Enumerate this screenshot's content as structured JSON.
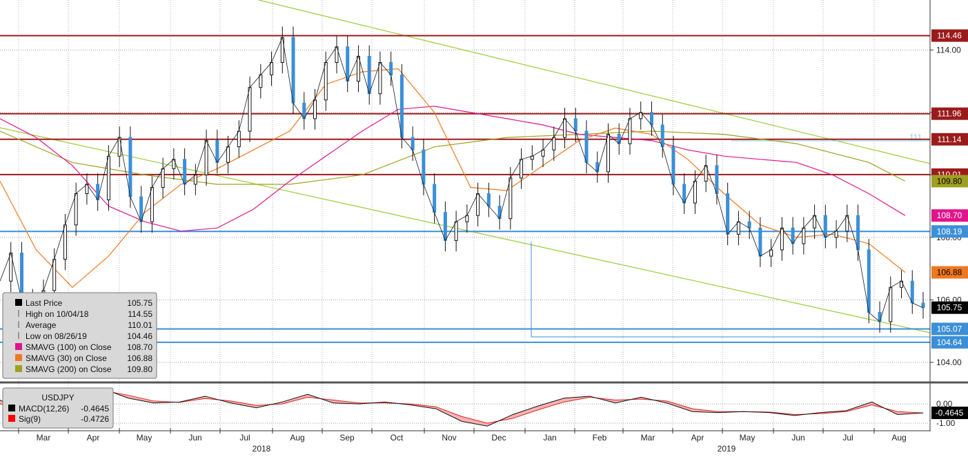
{
  "chart_data": {
    "type": "line",
    "instrument": "USDJPY",
    "x_months": [
      "Mar",
      "Apr",
      "May",
      "Jun",
      "Jul",
      "Aug",
      "Sep",
      "Oct",
      "Nov",
      "Dec",
      "Jan",
      "Feb",
      "Mar",
      "Apr",
      "May",
      "Jun",
      "Jul",
      "Aug"
    ],
    "x_years": [
      "2018",
      "2019"
    ],
    "price_axis": {
      "ticks": [
        "114.00",
        "112.00",
        "110.00",
        "108.00",
        "106.00",
        "104.00"
      ],
      "ylim": [
        103.4,
        115.6
      ],
      "grid": true
    },
    "horizontal_levels": [
      {
        "label": "114.46",
        "value": 114.46,
        "color": "#9b1b1b"
      },
      {
        "label": "111.96",
        "value": 111.96,
        "color": "#9b1b1b"
      },
      {
        "label": "111.14",
        "value": 111.14,
        "color": "#9b1b1b"
      },
      {
        "label": "110.01",
        "value": 110.01,
        "color": "#9b1b1b"
      },
      {
        "label": "108.19",
        "value": 108.19,
        "color": "#3b8fd8"
      },
      {
        "label": "105.07",
        "value": 105.07,
        "color": "#3b8fd8"
      },
      {
        "label": "104.64",
        "value": 104.64,
        "color": "#3b8fd8"
      }
    ],
    "value_tags": [
      {
        "label": "109.80",
        "value": 109.8,
        "bg": "#a0a020",
        "fg": "#000000"
      },
      {
        "label": "108.70",
        "value": 108.7,
        "bg": "#e0148c",
        "fg": "#ffffff"
      },
      {
        "label": "106.88",
        "value": 106.88,
        "bg": "#f07820",
        "fg": "#000000"
      },
      {
        "label": "105.75",
        "value": 105.75,
        "bg": "#000000",
        "fg": "#ffffff"
      }
    ],
    "trend_line_label": "111",
    "price_series": [
      {
        "x": 0,
        "y": 106.6
      },
      {
        "x": 0.3,
        "y": 107.5
      },
      {
        "x": 0.6,
        "y": 106.0
      },
      {
        "x": 0.9,
        "y": 105.0
      },
      {
        "x": 1.2,
        "y": 106.3
      },
      {
        "x": 1.5,
        "y": 107.3
      },
      {
        "x": 1.8,
        "y": 108.4
      },
      {
        "x": 2.1,
        "y": 109.4
      },
      {
        "x": 2.4,
        "y": 109.7
      },
      {
        "x": 2.7,
        "y": 109.2
      },
      {
        "x": 3.0,
        "y": 110.6
      },
      {
        "x": 3.3,
        "y": 111.2
      },
      {
        "x": 3.6,
        "y": 109.3
      },
      {
        "x": 3.9,
        "y": 108.5
      },
      {
        "x": 4.2,
        "y": 109.6
      },
      {
        "x": 4.5,
        "y": 110.2
      },
      {
        "x": 4.8,
        "y": 110.5
      },
      {
        "x": 5.1,
        "y": 109.7
      },
      {
        "x": 5.4,
        "y": 110.0
      },
      {
        "x": 5.7,
        "y": 111.1
      },
      {
        "x": 6.0,
        "y": 110.4
      },
      {
        "x": 6.3,
        "y": 110.9
      },
      {
        "x": 6.6,
        "y": 111.4
      },
      {
        "x": 6.9,
        "y": 112.8
      },
      {
        "x": 7.2,
        "y": 113.2
      },
      {
        "x": 7.5,
        "y": 113.6
      },
      {
        "x": 7.8,
        "y": 114.4
      },
      {
        "x": 8.1,
        "y": 112.3
      },
      {
        "x": 8.4,
        "y": 111.8
      },
      {
        "x": 8.7,
        "y": 112.4
      },
      {
        "x": 9.0,
        "y": 113.6
      },
      {
        "x": 9.3,
        "y": 114.1
      },
      {
        "x": 9.6,
        "y": 113.0
      },
      {
        "x": 9.9,
        "y": 113.8
      },
      {
        "x": 10.2,
        "y": 112.6
      },
      {
        "x": 10.5,
        "y": 113.6
      },
      {
        "x": 10.8,
        "y": 113.2
      },
      {
        "x": 11.1,
        "y": 111.2
      },
      {
        "x": 11.4,
        "y": 110.8
      },
      {
        "x": 11.7,
        "y": 109.7
      },
      {
        "x": 12.0,
        "y": 108.8
      },
      {
        "x": 12.3,
        "y": 107.9
      },
      {
        "x": 12.6,
        "y": 108.5
      },
      {
        "x": 12.9,
        "y": 108.7
      },
      {
        "x": 13.2,
        "y": 109.4
      },
      {
        "x": 13.5,
        "y": 109.0
      },
      {
        "x": 13.8,
        "y": 108.6
      },
      {
        "x": 14.1,
        "y": 109.9
      },
      {
        "x": 14.4,
        "y": 110.5
      },
      {
        "x": 14.7,
        "y": 110.6
      },
      {
        "x": 15.0,
        "y": 110.8
      },
      {
        "x": 15.3,
        "y": 111.2
      },
      {
        "x": 15.6,
        "y": 111.8
      },
      {
        "x": 15.9,
        "y": 111.4
      },
      {
        "x": 16.2,
        "y": 110.4
      },
      {
        "x": 16.5,
        "y": 110.1
      },
      {
        "x": 16.8,
        "y": 111.3
      },
      {
        "x": 17.1,
        "y": 111.0
      },
      {
        "x": 17.4,
        "y": 111.8
      },
      {
        "x": 17.7,
        "y": 112.0
      },
      {
        "x": 18.0,
        "y": 111.6
      },
      {
        "x": 18.3,
        "y": 110.9
      },
      {
        "x": 18.6,
        "y": 109.7
      },
      {
        "x": 18.9,
        "y": 109.1
      },
      {
        "x": 19.2,
        "y": 109.8
      },
      {
        "x": 19.5,
        "y": 110.3
      },
      {
        "x": 19.8,
        "y": 109.4
      },
      {
        "x": 20.1,
        "y": 108.1
      },
      {
        "x": 20.4,
        "y": 108.5
      },
      {
        "x": 20.7,
        "y": 108.3
      },
      {
        "x": 21.0,
        "y": 107.4
      },
      {
        "x": 21.3,
        "y": 107.6
      },
      {
        "x": 21.6,
        "y": 108.3
      },
      {
        "x": 21.9,
        "y": 107.8
      },
      {
        "x": 22.2,
        "y": 108.3
      },
      {
        "x": 22.5,
        "y": 108.7
      },
      {
        "x": 22.8,
        "y": 108.0
      },
      {
        "x": 23.1,
        "y": 108.2
      },
      {
        "x": 23.4,
        "y": 108.7
      },
      {
        "x": 23.7,
        "y": 107.6
      },
      {
        "x": 24.0,
        "y": 105.6
      },
      {
        "x": 24.3,
        "y": 105.3
      },
      {
        "x": 24.6,
        "y": 106.4
      },
      {
        "x": 24.9,
        "y": 106.6
      },
      {
        "x": 25.2,
        "y": 105.9
      },
      {
        "x": 25.5,
        "y": 105.75
      }
    ],
    "sma_100": [
      {
        "x": 0,
        "y": 111.8
      },
      {
        "x": 1,
        "y": 111.2
      },
      {
        "x": 2,
        "y": 110.3
      },
      {
        "x": 3,
        "y": 109.0
      },
      {
        "x": 4,
        "y": 108.5
      },
      {
        "x": 5,
        "y": 108.2
      },
      {
        "x": 6,
        "y": 108.3
      },
      {
        "x": 7,
        "y": 108.9
      },
      {
        "x": 8,
        "y": 109.8
      },
      {
        "x": 9,
        "y": 110.6
      },
      {
        "x": 10,
        "y": 111.4
      },
      {
        "x": 11,
        "y": 112.1
      },
      {
        "x": 12,
        "y": 112.2
      },
      {
        "x": 13,
        "y": 112.0
      },
      {
        "x": 14,
        "y": 111.8
      },
      {
        "x": 15,
        "y": 111.6
      },
      {
        "x": 16,
        "y": 111.3
      },
      {
        "x": 17,
        "y": 111.2
      },
      {
        "x": 18,
        "y": 111.1
      },
      {
        "x": 19,
        "y": 110.8
      },
      {
        "x": 20,
        "y": 110.6
      },
      {
        "x": 21,
        "y": 110.5
      },
      {
        "x": 22,
        "y": 110.4
      },
      {
        "x": 23,
        "y": 110.0
      },
      {
        "x": 24,
        "y": 109.4
      },
      {
        "x": 25,
        "y": 108.7
      }
    ],
    "sma_30": [
      {
        "x": 0,
        "y": 109.8
      },
      {
        "x": 1,
        "y": 107.6
      },
      {
        "x": 2,
        "y": 106.4
      },
      {
        "x": 3,
        "y": 107.4
      },
      {
        "x": 4,
        "y": 108.8
      },
      {
        "x": 5,
        "y": 109.7
      },
      {
        "x": 6,
        "y": 110.2
      },
      {
        "x": 7,
        "y": 110.8
      },
      {
        "x": 8,
        "y": 111.4
      },
      {
        "x": 9,
        "y": 112.9
      },
      {
        "x": 10,
        "y": 113.3
      },
      {
        "x": 11,
        "y": 113.4
      },
      {
        "x": 12,
        "y": 112.0
      },
      {
        "x": 13,
        "y": 109.6
      },
      {
        "x": 14,
        "y": 109.5
      },
      {
        "x": 15,
        "y": 110.3
      },
      {
        "x": 16,
        "y": 111.1
      },
      {
        "x": 17,
        "y": 111.5
      },
      {
        "x": 18,
        "y": 111.3
      },
      {
        "x": 19,
        "y": 110.5
      },
      {
        "x": 20,
        "y": 109.4
      },
      {
        "x": 21,
        "y": 108.4
      },
      {
        "x": 22,
        "y": 108.0
      },
      {
        "x": 23,
        "y": 108.1
      },
      {
        "x": 24,
        "y": 107.8
      },
      {
        "x": 25,
        "y": 106.88
      }
    ],
    "sma_200": [
      {
        "x": 0,
        "y": 111.4
      },
      {
        "x": 2,
        "y": 110.4
      },
      {
        "x": 4,
        "y": 110.0
      },
      {
        "x": 6,
        "y": 109.7
      },
      {
        "x": 8,
        "y": 109.7
      },
      {
        "x": 10,
        "y": 110.0
      },
      {
        "x": 12,
        "y": 110.9
      },
      {
        "x": 14,
        "y": 111.2
      },
      {
        "x": 16,
        "y": 111.3
      },
      {
        "x": 18,
        "y": 111.4
      },
      {
        "x": 20,
        "y": 111.3
      },
      {
        "x": 22,
        "y": 111.0
      },
      {
        "x": 24,
        "y": 110.4
      },
      {
        "x": 25,
        "y": 109.8
      }
    ],
    "legend": {
      "rows": [
        {
          "name": "Last Price",
          "value": "105.75",
          "swatch": "#000000"
        },
        {
          "name": "High on 10/04/18",
          "value": "114.55",
          "swatch": ""
        },
        {
          "name": "Average",
          "value": "110.01",
          "swatch": ""
        },
        {
          "name": "Low on 08/26/19",
          "value": "104.46",
          "swatch": ""
        },
        {
          "name": "SMAVG (100)  on Close",
          "value": "108.70",
          "swatch": "#e0148c"
        },
        {
          "name": "SMAVG (30)  on Close",
          "value": "106.88",
          "swatch": "#f07820"
        },
        {
          "name": "SMAVG (200)  on Close",
          "value": "109.80",
          "swatch": "#a0a020"
        }
      ],
      "placement": "bottom-left"
    },
    "macd_panel": {
      "title": "USDJPY",
      "rows": [
        {
          "name": "MACD(12,26)",
          "value": "-0.4645",
          "swatch": "#000000"
        },
        {
          "name": "Sig(9)",
          "value": "-0.4726",
          "swatch": "#ff0000"
        }
      ],
      "ticks": [
        "0.00",
        "-1.00"
      ],
      "ylim": [
        -1.25,
        0.9
      ],
      "last_tag": "-0.4645",
      "macd": [
        {
          "x": 0,
          "y": 0.2
        },
        {
          "x": 1,
          "y": -0.45
        },
        {
          "x": 2,
          "y": 0.0
        },
        {
          "x": 3,
          "y": 0.75
        },
        {
          "x": 4,
          "y": 0.8
        },
        {
          "x": 5,
          "y": 0.3
        },
        {
          "x": 6,
          "y": 0.05
        },
        {
          "x": 7,
          "y": 0.1
        },
        {
          "x": 8,
          "y": 0.4
        },
        {
          "x": 9,
          "y": 0.05
        },
        {
          "x": 10,
          "y": -0.2
        },
        {
          "x": 11,
          "y": 0.1
        },
        {
          "x": 12,
          "y": 0.5
        },
        {
          "x": 13,
          "y": 0.05
        },
        {
          "x": 14,
          "y": 0.0
        },
        {
          "x": 15,
          "y": 0.1
        },
        {
          "x": 16,
          "y": -0.05
        },
        {
          "x": 17,
          "y": -0.25
        },
        {
          "x": 18,
          "y": -0.9
        },
        {
          "x": 19,
          "y": -1.15
        },
        {
          "x": 20,
          "y": -0.55
        },
        {
          "x": 21,
          "y": -0.1
        },
        {
          "x": 22,
          "y": 0.3
        },
        {
          "x": 23,
          "y": 0.4
        },
        {
          "x": 24,
          "y": 0.05
        },
        {
          "x": 25,
          "y": 0.35
        },
        {
          "x": 26,
          "y": 0.05
        },
        {
          "x": 27,
          "y": -0.4
        },
        {
          "x": 28,
          "y": -0.45
        },
        {
          "x": 29,
          "y": -0.4
        },
        {
          "x": 30,
          "y": -0.45
        },
        {
          "x": 31,
          "y": -0.6
        },
        {
          "x": 32,
          "y": -0.45
        },
        {
          "x": 33,
          "y": -0.35
        },
        {
          "x": 34,
          "y": 0.1
        },
        {
          "x": 35,
          "y": -0.55
        },
        {
          "x": 36,
          "y": -0.4645
        }
      ],
      "signal": [
        {
          "x": 0,
          "y": 0.0
        },
        {
          "x": 1,
          "y": -0.2
        },
        {
          "x": 2,
          "y": -0.15
        },
        {
          "x": 3,
          "y": 0.4
        },
        {
          "x": 4,
          "y": 0.7
        },
        {
          "x": 5,
          "y": 0.45
        },
        {
          "x": 6,
          "y": 0.15
        },
        {
          "x": 7,
          "y": 0.08
        },
        {
          "x": 8,
          "y": 0.28
        },
        {
          "x": 9,
          "y": 0.15
        },
        {
          "x": 10,
          "y": -0.08
        },
        {
          "x": 11,
          "y": 0.0
        },
        {
          "x": 12,
          "y": 0.35
        },
        {
          "x": 13,
          "y": 0.2
        },
        {
          "x": 14,
          "y": 0.05
        },
        {
          "x": 15,
          "y": 0.05
        },
        {
          "x": 16,
          "y": 0.0
        },
        {
          "x": 17,
          "y": -0.15
        },
        {
          "x": 18,
          "y": -0.65
        },
        {
          "x": 19,
          "y": -1.0
        },
        {
          "x": 20,
          "y": -0.75
        },
        {
          "x": 21,
          "y": -0.3
        },
        {
          "x": 22,
          "y": 0.1
        },
        {
          "x": 23,
          "y": 0.35
        },
        {
          "x": 24,
          "y": 0.2
        },
        {
          "x": 25,
          "y": 0.25
        },
        {
          "x": 26,
          "y": 0.15
        },
        {
          "x": 27,
          "y": -0.25
        },
        {
          "x": 28,
          "y": -0.4
        },
        {
          "x": 29,
          "y": -0.4
        },
        {
          "x": 30,
          "y": -0.42
        },
        {
          "x": 31,
          "y": -0.55
        },
        {
          "x": 32,
          "y": -0.5
        },
        {
          "x": 33,
          "y": -0.4
        },
        {
          "x": 34,
          "y": -0.05
        },
        {
          "x": 35,
          "y": -0.4
        },
        {
          "x": 36,
          "y": -0.4726
        }
      ]
    }
  }
}
